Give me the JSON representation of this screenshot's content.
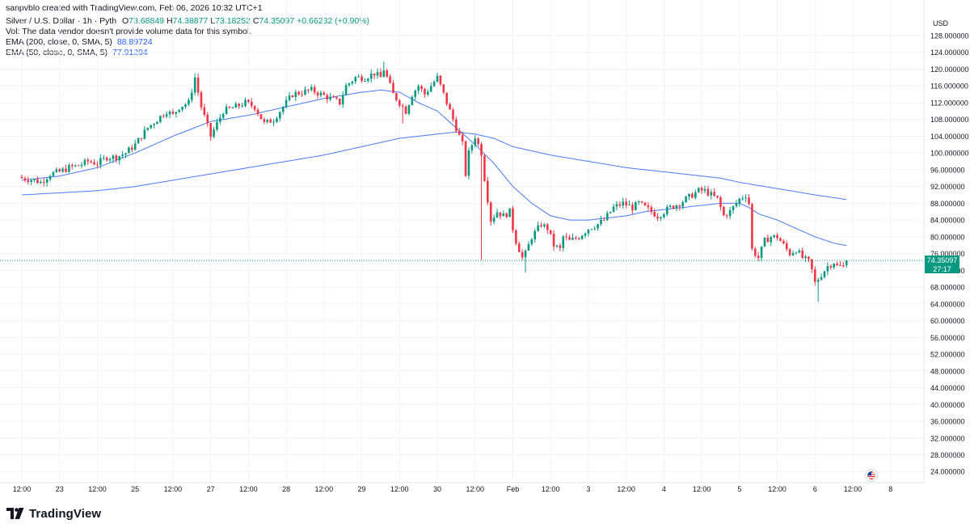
{
  "header": {
    "credit": "sanpvblo created with TradingView.com, Feb 06, 2026 10:32 UTC+1",
    "symbol": "Silver / U.S. Dollar · 1h · Pyth",
    "ohlc": {
      "o_label": "O",
      "o_value": "73.68849",
      "h_label": "H",
      "h_value": "74.38877",
      "l_label": "L",
      "l_value": "73.18252",
      "c_label": "C",
      "c_value": "74.35097",
      "change": "+0.66232 (+0.90%)"
    },
    "volume_note": "Vol: The data vendor doesn't provide volume data for this symbol.",
    "ema200_label": "EMA (200, close, 0, SMA, 5)",
    "ema200_value": "88.89724",
    "ema50_label": "EMA (50, close, 0, SMA, 5)",
    "ema50_value": "77.91294"
  },
  "price_axis": {
    "currency": "USD",
    "last_price": "74.35097",
    "countdown": "27:17"
  },
  "footer": {
    "brand": "TradingView"
  },
  "colors": {
    "up": "#089981",
    "down": "#f23645",
    "ema": "#2962ff",
    "grid": "#f0f3fa"
  },
  "icons": {
    "logo": "tradingview-logo-icon",
    "flag": "us-flag-icon"
  },
  "chart_data": {
    "type": "candlestick",
    "y_ticks": [
      "128.000000",
      "124.000000",
      "120.000000",
      "116.000000",
      "112.000000",
      "108.000000",
      "104.000000",
      "100.000000",
      "96.000000",
      "92.000000",
      "88.000000",
      "84.000000",
      "80.000000",
      "76.000000",
      "72.000000",
      "68.000000",
      "64.000000",
      "60.000000",
      "56.000000",
      "52.000000",
      "48.000000",
      "44.000000",
      "40.000000",
      "36.000000",
      "32.000000",
      "28.000000",
      "24.000000"
    ],
    "ylim": [
      20.5,
      131
    ],
    "x_ticks": [
      {
        "label": "12:00",
        "t": 0
      },
      {
        "label": "23",
        "t": 12
      },
      {
        "label": "12:00",
        "t": 24
      },
      {
        "label": "25",
        "t": 36
      },
      {
        "label": "12:00",
        "t": 48
      },
      {
        "label": "27",
        "t": 60
      },
      {
        "label": "12:00",
        "t": 72
      },
      {
        "label": "28",
        "t": 84
      },
      {
        "label": "12:00",
        "t": 96
      },
      {
        "label": "29",
        "t": 108
      },
      {
        "label": "12:00",
        "t": 120
      },
      {
        "label": "30",
        "t": 132
      },
      {
        "label": "12:00",
        "t": 144
      },
      {
        "label": "Feb",
        "t": 156
      },
      {
        "label": "12:00",
        "t": 168
      },
      {
        "label": "3",
        "t": 180
      },
      {
        "label": "12:00",
        "t": 192
      },
      {
        "label": "4",
        "t": 204
      },
      {
        "label": "12:00",
        "t": 216
      },
      {
        "label": "5",
        "t": 228
      },
      {
        "label": "12:00",
        "t": 240
      },
      {
        "label": "6",
        "t": 252
      },
      {
        "label": "12:00",
        "t": 264
      },
      {
        "label": "8",
        "t": 276
      }
    ],
    "x_unit": "hours after Jan 22 12:00",
    "close_anchors": [
      [
        0,
        94
      ],
      [
        4,
        93.5
      ],
      [
        6,
        93
      ],
      [
        9,
        95
      ],
      [
        12,
        95.5
      ],
      [
        15,
        96.5
      ],
      [
        18,
        97
      ],
      [
        21,
        98
      ],
      [
        24,
        97.5
      ],
      [
        27,
        99
      ],
      [
        30,
        99
      ],
      [
        33,
        100
      ],
      [
        36,
        102
      ],
      [
        40,
        106
      ],
      [
        43,
        108
      ],
      [
        46,
        110
      ],
      [
        48,
        109
      ],
      [
        50,
        111
      ],
      [
        53,
        112
      ],
      [
        55,
        118
      ],
      [
        57,
        111
      ],
      [
        60,
        104
      ],
      [
        62,
        107
      ],
      [
        64,
        110
      ],
      [
        68,
        111
      ],
      [
        71,
        112
      ],
      [
        74,
        111
      ],
      [
        77,
        107
      ],
      [
        80,
        108
      ],
      [
        83,
        111
      ],
      [
        86,
        114
      ],
      [
        89,
        114.5
      ],
      [
        92,
        115
      ],
      [
        95,
        114
      ],
      [
        98,
        113
      ],
      [
        101,
        112
      ],
      [
        103,
        116
      ],
      [
        106,
        118
      ],
      [
        109,
        118
      ],
      [
        112,
        119
      ],
      [
        114,
        118
      ],
      [
        115,
        120
      ],
      [
        116,
        118
      ],
      [
        118,
        114
      ],
      [
        120,
        112
      ],
      [
        122,
        110
      ],
      [
        124,
        114
      ],
      [
        126,
        116
      ],
      [
        128,
        114
      ],
      [
        130,
        116
      ],
      [
        132,
        118
      ],
      [
        134,
        114
      ],
      [
        136,
        110
      ],
      [
        138,
        106
      ],
      [
        140,
        102
      ],
      [
        141,
        95
      ],
      [
        142,
        100
      ],
      [
        144,
        104
      ],
      [
        146,
        100
      ],
      [
        147,
        94
      ],
      [
        149,
        84
      ],
      [
        151,
        86
      ],
      [
        153,
        85
      ],
      [
        155,
        86
      ],
      [
        156,
        82
      ],
      [
        157,
        79
      ],
      [
        159,
        75
      ],
      [
        160,
        76
      ],
      [
        162,
        80
      ],
      [
        165,
        83
      ],
      [
        167,
        82
      ],
      [
        169,
        78
      ],
      [
        171,
        77
      ],
      [
        172,
        80
      ],
      [
        174,
        79
      ],
      [
        177,
        80
      ],
      [
        180,
        82
      ],
      [
        183,
        83
      ],
      [
        185,
        84
      ],
      [
        188,
        87
      ],
      [
        191,
        88
      ],
      [
        194,
        87
      ],
      [
        196,
        88
      ],
      [
        198,
        87
      ],
      [
        200,
        86
      ],
      [
        202,
        85
      ],
      [
        204,
        86
      ],
      [
        206,
        87
      ],
      [
        209,
        88
      ],
      [
        211,
        89
      ],
      [
        213,
        90
      ],
      [
        215,
        91
      ],
      [
        217,
        91
      ],
      [
        219,
        90
      ],
      [
        221,
        89
      ],
      [
        223,
        85
      ],
      [
        225,
        86
      ],
      [
        228,
        89
      ],
      [
        230,
        90
      ],
      [
        231,
        88
      ],
      [
        232,
        77
      ],
      [
        234,
        75
      ],
      [
        236,
        79
      ],
      [
        238,
        80
      ],
      [
        240,
        80
      ],
      [
        242,
        78
      ],
      [
        244,
        76
      ],
      [
        246,
        77
      ],
      [
        248,
        75
      ],
      [
        250,
        74
      ],
      [
        251,
        72
      ],
      [
        252,
        69
      ],
      [
        254,
        71
      ],
      [
        256,
        73
      ],
      [
        258,
        74
      ],
      [
        259,
        73
      ],
      [
        261,
        73
      ],
      [
        262,
        74.35
      ]
    ],
    "ema50_anchors": [
      [
        0,
        93.5
      ],
      [
        12,
        94.5
      ],
      [
        24,
        96.5
      ],
      [
        36,
        100
      ],
      [
        48,
        104
      ],
      [
        60,
        107.5
      ],
      [
        72,
        109
      ],
      [
        84,
        111
      ],
      [
        96,
        113
      ],
      [
        108,
        114.5
      ],
      [
        114,
        115
      ],
      [
        120,
        114.5
      ],
      [
        126,
        112
      ],
      [
        132,
        110
      ],
      [
        138,
        106
      ],
      [
        144,
        102
      ],
      [
        150,
        97.5
      ],
      [
        156,
        92
      ],
      [
        162,
        88
      ],
      [
        168,
        85
      ],
      [
        174,
        84
      ],
      [
        180,
        84
      ],
      [
        186,
        84.5
      ],
      [
        192,
        85
      ],
      [
        198,
        86
      ],
      [
        204,
        86.5
      ],
      [
        210,
        87
      ],
      [
        216,
        87.5
      ],
      [
        222,
        88
      ],
      [
        228,
        88
      ],
      [
        231,
        87
      ],
      [
        234,
        85.5
      ],
      [
        240,
        84
      ],
      [
        246,
        82
      ],
      [
        252,
        80
      ],
      [
        258,
        78.5
      ],
      [
        262,
        77.9
      ]
    ],
    "ema200_anchors": [
      [
        0,
        90
      ],
      [
        12,
        90.5
      ],
      [
        24,
        91
      ],
      [
        36,
        92
      ],
      [
        48,
        93.5
      ],
      [
        60,
        95
      ],
      [
        72,
        96.5
      ],
      [
        84,
        98
      ],
      [
        96,
        99.5
      ],
      [
        108,
        101.5
      ],
      [
        120,
        103.5
      ],
      [
        132,
        104.5
      ],
      [
        138,
        105
      ],
      [
        144,
        104.5
      ],
      [
        150,
        103.5
      ],
      [
        156,
        101.5
      ],
      [
        162,
        100.5
      ],
      [
        168,
        99.5
      ],
      [
        180,
        98
      ],
      [
        192,
        96.5
      ],
      [
        204,
        95.5
      ],
      [
        216,
        94.5
      ],
      [
        222,
        94
      ],
      [
        228,
        93
      ],
      [
        240,
        91.5
      ],
      [
        252,
        90
      ],
      [
        262,
        88.9
      ]
    ],
    "last_price": 74.35097,
    "grid": true
  }
}
